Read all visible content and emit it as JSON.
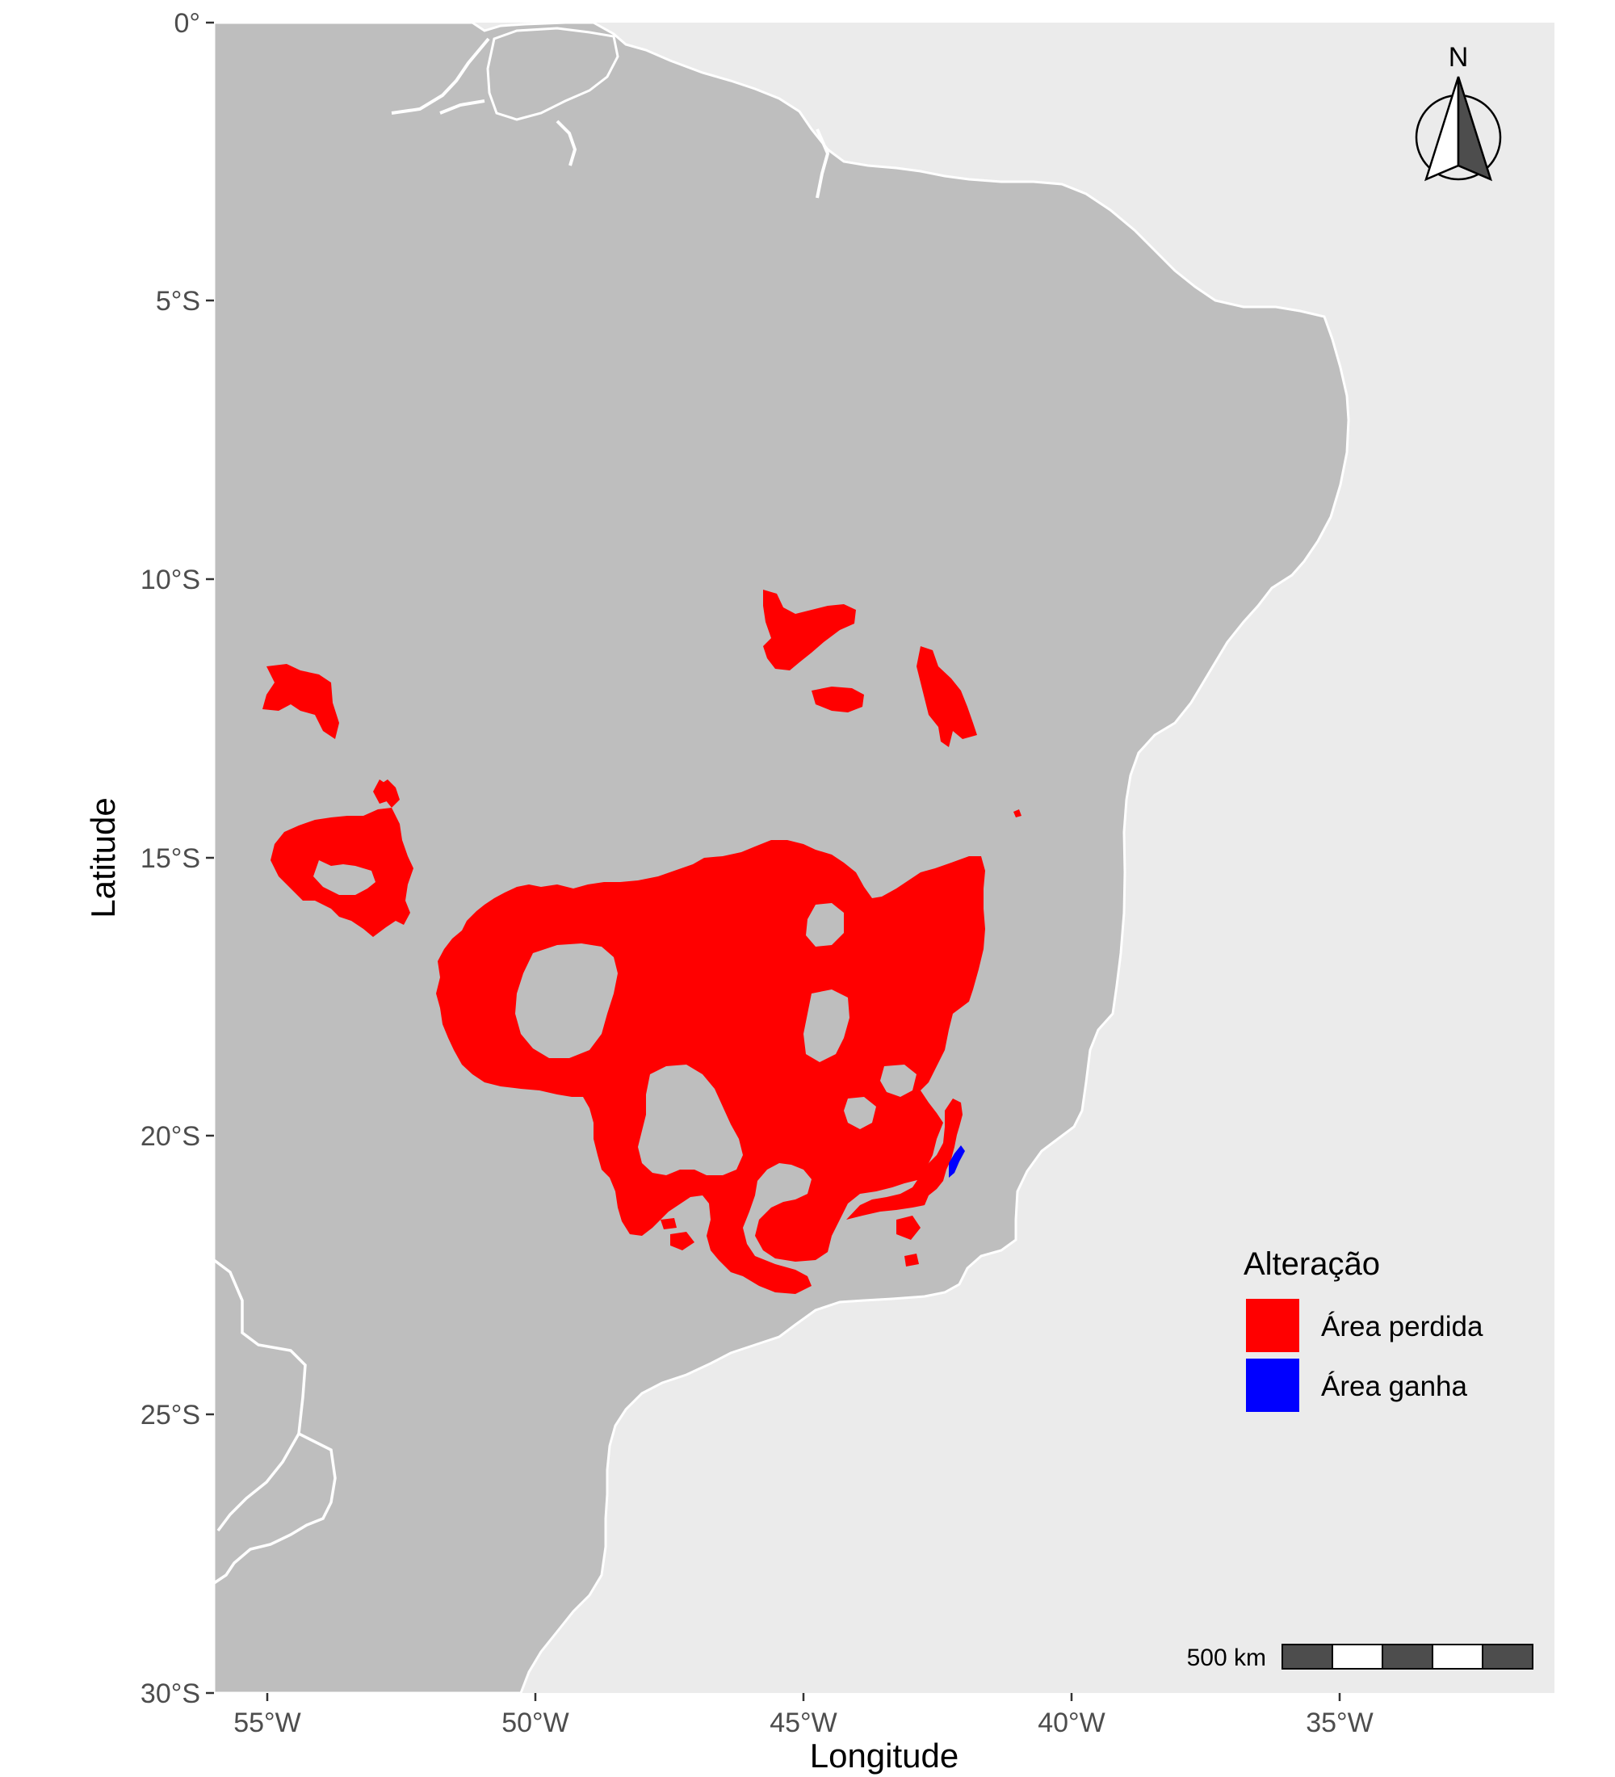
{
  "chart_data": {
    "type": "map",
    "xlabel": "Longitude",
    "ylabel": "Latitude",
    "x_ticks": [
      "55°W",
      "50°W",
      "45°W",
      "40°W",
      "35°W"
    ],
    "y_ticks": [
      "0°",
      "5°S",
      "10°S",
      "15°S",
      "20°S",
      "25°S",
      "30°S"
    ],
    "xlim": [
      -56,
      -31
    ],
    "ylim": [
      -30,
      0
    ],
    "legend": {
      "title": "Alteração",
      "position": "right",
      "entries": [
        {
          "label": "Área perdida",
          "color": "#ff0000"
        },
        {
          "label": "Área ganha",
          "color": "#0000ff"
        }
      ]
    },
    "north_arrow": {
      "label": "N",
      "position": "top-right"
    },
    "scale_bar": {
      "label": "500 km",
      "position": "bottom-right"
    },
    "colors": {
      "land": "#bebebe",
      "ocean": "#ebebeb",
      "borders": "#ffffff"
    }
  }
}
